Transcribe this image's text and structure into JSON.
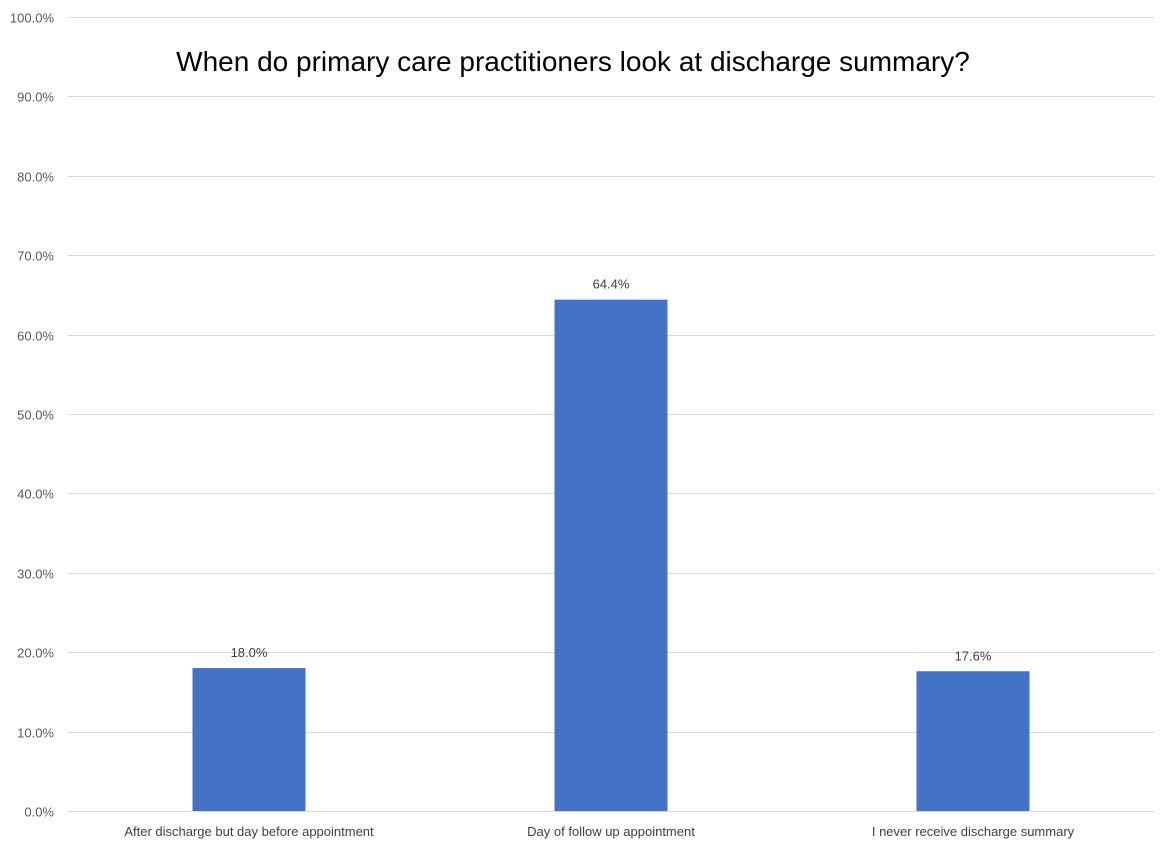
{
  "chart_data": {
    "type": "bar",
    "title": "When do primary care practitioners look at discharge summary?",
    "categories": [
      "After discharge but day before appointment",
      "Day of follow up appointment",
      "I never receive discharge summary"
    ],
    "values": [
      18.0,
      64.4,
      17.6
    ],
    "data_labels": [
      "18.0%",
      "64.4%",
      "17.6%"
    ],
    "ylim": [
      0,
      100
    ],
    "yticks": [
      0,
      10,
      20,
      30,
      40,
      50,
      60,
      70,
      80,
      90,
      100
    ],
    "ytick_labels": [
      "0.0%",
      "10.0%",
      "20.0%",
      "30.0%",
      "40.0%",
      "50.0%",
      "60.0%",
      "70.0%",
      "80.0%",
      "90.0%",
      "100.0%"
    ],
    "xlabel": "",
    "ylabel": "",
    "grid": "horizontal",
    "legend": "none",
    "bar_color": "#4472c4"
  }
}
